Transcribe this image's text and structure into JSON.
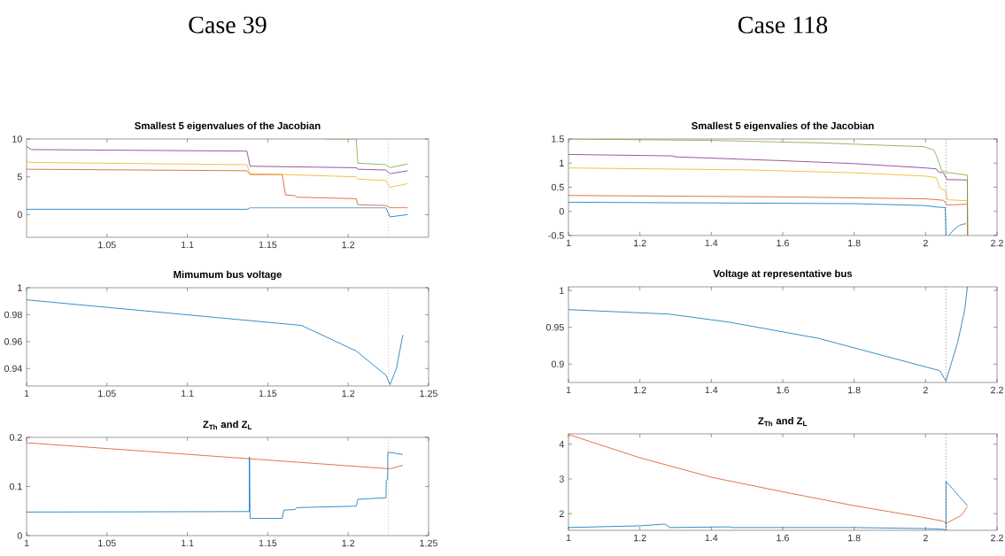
{
  "chart_data": [
    {
      "type": "line",
      "title": "Smallest 5 eigenvalues of the Jacobian",
      "annotations": [
        "Case 39"
      ],
      "xlim": [
        1,
        1.25
      ],
      "ylim": [
        -3,
        10
      ],
      "xticks": [
        1.05,
        1.1,
        1.15,
        1.2
      ],
      "yticks": [
        0,
        5,
        10
      ],
      "series": [
        {
          "color": "#0072bd",
          "x": [
            1.0,
            1.137,
            1.139,
            1.2234,
            1.226,
            1.237
          ],
          "values": [
            0.7,
            0.7,
            0.9,
            0.9,
            -0.3,
            0
          ]
        },
        {
          "color": "#d95319",
          "x": [
            1.0,
            1.137,
            1.139,
            1.159,
            1.161,
            1.167,
            1.168,
            1.205,
            1.206,
            1.2234,
            1.226,
            1.237
          ],
          "values": [
            6.0,
            5.8,
            5.3,
            5.3,
            2.6,
            2.5,
            2.3,
            2.1,
            1.3,
            1.2,
            0.9,
            0.9
          ]
        },
        {
          "color": "#edb120",
          "x": [
            1.0,
            1.003,
            1.137,
            1.139,
            1.159,
            1.205,
            1.206,
            1.2234,
            1.226,
            1.237
          ],
          "values": [
            7.0,
            6.9,
            6.6,
            5.4,
            5.3,
            5.0,
            4.7,
            4.5,
            3.6,
            4.1
          ]
        },
        {
          "color": "#7e2f8e",
          "x": [
            1.0,
            1.003,
            1.137,
            1.139,
            1.205,
            1.206,
            1.2234,
            1.226,
            1.237
          ],
          "values": [
            9.0,
            8.6,
            8.4,
            6.4,
            6.2,
            6.0,
            5.9,
            5.4,
            5.8
          ]
        },
        {
          "color": "#77ac30",
          "x": [
            1.186,
            1.205,
            1.206,
            1.2234,
            1.226,
            1.237
          ],
          "values": [
            10,
            10,
            6.8,
            6.6,
            6.2,
            6.7
          ]
        }
      ],
      "ref_lines": [
        {
          "axis": "x",
          "value": 1.225,
          "color": "#a0a0a0",
          "line_style": "dotted"
        }
      ]
    },
    {
      "type": "line",
      "title": "Smallest 5 eigenvalies of the Jacobian",
      "annotations": [
        "Case 118"
      ],
      "xlim": [
        1,
        2.2
      ],
      "ylim": [
        -0.5,
        1.5
      ],
      "xticks": [
        1,
        1.2,
        1.4,
        1.6,
        1.8,
        2,
        2.2
      ],
      "yticks": [
        -0.5,
        0,
        0.5,
        1,
        1.5
      ],
      "series": [
        {
          "color": "#0072bd",
          "x": [
            1.0,
            1.8,
            2.0,
            2.03,
            2.055,
            2.057,
            2.06,
            2.065,
            2.08,
            2.095,
            2.107,
            2.113
          ],
          "values": [
            0.19,
            0.16,
            0.12,
            0.09,
            0.08,
            -0.5,
            null,
            -0.5,
            -0.37,
            -0.29,
            -0.26,
            -0.26
          ]
        },
        {
          "color": "#d95319",
          "x": [
            1.0,
            1.6,
            2.0,
            2.05,
            2.06,
            2.117,
            2.118
          ],
          "values": [
            0.33,
            0.3,
            0.26,
            0.23,
            0.13,
            0.15,
            -0.5
          ]
        },
        {
          "color": "#edb120",
          "x": [
            1.0,
            1.5,
            1.8,
            2.0,
            2.03,
            2.04,
            2.057,
            2.06,
            2.117,
            2.118
          ],
          "values": [
            0.9,
            0.86,
            0.8,
            0.73,
            0.7,
            0.48,
            0.42,
            0.24,
            0.22,
            -0.5
          ]
        },
        {
          "color": "#7e2f8e",
          "x": [
            1.0,
            1.29,
            1.3,
            1.6,
            1.8,
            2.0,
            2.03,
            2.035,
            2.05,
            2.06,
            2.117,
            2.118
          ],
          "values": [
            1.18,
            1.15,
            1.13,
            1.05,
            0.99,
            0.9,
            0.88,
            0.82,
            0.8,
            0.66,
            0.65,
            -0.5
          ]
        },
        {
          "color": "#77ac30",
          "x": [
            1.0,
            1.4,
            1.7,
            1.996,
            2.023,
            2.03,
            2.045,
            2.057,
            2.117,
            2.118
          ],
          "values": [
            1.5,
            1.47,
            1.42,
            1.34,
            1.27,
            1.16,
            0.85,
            0.81,
            0.75,
            -0.5
          ]
        }
      ],
      "ref_lines": [
        {
          "axis": "x",
          "value": 2.057,
          "color": "#404040",
          "line_style": "dotted"
        }
      ]
    },
    {
      "type": "line",
      "title": "Mimumum bus voltage",
      "xlim": [
        1,
        1.25
      ],
      "ylim": [
        0.927,
        1
      ],
      "xticks": [
        1,
        1.05,
        1.1,
        1.15,
        1.2,
        1.25
      ],
      "yticks": [
        0.94,
        0.96,
        0.98,
        1
      ],
      "series": [
        {
          "color": "#0072bd",
          "x": [
            1.0,
            1.171,
            1.205,
            1.2235,
            1.226,
            1.23,
            1.234
          ],
          "values": [
            0.991,
            0.972,
            0.953,
            0.935,
            0.928,
            0.94,
            0.965
          ]
        }
      ],
      "ref_lines": [
        {
          "axis": "x",
          "value": 1.225,
          "color": "#a0a0a0",
          "line_style": "dotted"
        }
      ]
    },
    {
      "type": "line",
      "title": "Voltage at representative bus",
      "xlim": [
        1,
        2.2
      ],
      "ylim": [
        0.875,
        1.005
      ],
      "xticks": [
        1,
        1.2,
        1.4,
        1.6,
        1.8,
        2,
        2.2
      ],
      "yticks": [
        0.9,
        0.95,
        1
      ],
      "series": [
        {
          "color": "#0072bd",
          "x": [
            1.0,
            1.28,
            1.45,
            1.7,
            2.04,
            2.057,
            2.09,
            2.11,
            2.117
          ],
          "values": [
            0.974,
            0.968,
            0.957,
            0.935,
            0.891,
            0.877,
            0.93,
            0.975,
            1.005
          ]
        }
      ],
      "ref_lines": [
        {
          "axis": "x",
          "value": 2.057,
          "color": "#404040",
          "line_style": "dotted"
        }
      ]
    },
    {
      "type": "line",
      "title": "Z$_{Th}$ and Z$_{L}$",
      "xlim": [
        1,
        1.25
      ],
      "ylim": [
        0,
        0.2
      ],
      "xticks": [
        1,
        1.05,
        1.1,
        1.15,
        1.2,
        1.25
      ],
      "yticks": [
        0,
        0.1,
        0.2
      ],
      "series": [
        {
          "color": "#0072bd",
          "x": [
            1.0,
            1.1385,
            1.1386,
            1.139,
            1.159,
            1.16,
            1.167,
            1.168,
            1.205,
            1.206,
            1.2235,
            1.2237,
            1.2245,
            1.2247,
            1.234
          ],
          "values": [
            0.048,
            0.049,
            0.16,
            0.035,
            0.035,
            0.052,
            0.053,
            0.057,
            0.06,
            0.074,
            0.077,
            0.113,
            0.114,
            0.17,
            0.165
          ]
        },
        {
          "color": "#d95319",
          "x": [
            1.0,
            1.226,
            1.234
          ],
          "values": [
            0.189,
            0.136,
            0.143
          ]
        }
      ],
      "ref_lines": [
        {
          "axis": "x",
          "value": 1.225,
          "color": "#a0a0a0",
          "line_style": "dotted"
        }
      ]
    },
    {
      "type": "line",
      "title": "Z$_{Th}$ and Z$_{L}$",
      "xlim": [
        1,
        2.2
      ],
      "ylim": [
        1.52,
        4.3
      ],
      "xticks": [
        1,
        1.2,
        1.4,
        1.6,
        1.8,
        2,
        2.2
      ],
      "yticks": [
        2,
        3,
        4
      ],
      "series": [
        {
          "color": "#0072bd",
          "x": [
            1.0,
            1.2,
            1.27,
            1.285,
            1.45,
            1.46,
            1.8,
            2.0,
            2.05,
            2.057,
            2.0571,
            2.117
          ],
          "values": [
            1.6,
            1.65,
            1.7,
            1.6,
            1.62,
            1.6,
            1.6,
            1.57,
            1.55,
            1.52,
            2.93,
            2.23
          ]
        },
        {
          "color": "#d95319",
          "x": [
            1.0,
            1.2,
            1.4,
            1.6,
            1.8,
            2.0,
            2.05,
            2.057,
            2.1,
            2.117
          ],
          "values": [
            4.28,
            3.61,
            3.05,
            2.63,
            2.23,
            1.88,
            1.78,
            1.72,
            1.95,
            2.2
          ]
        }
      ],
      "ref_lines": [
        {
          "axis": "x",
          "value": 2.057,
          "color": "#404040",
          "line_style": "dotted"
        }
      ]
    }
  ]
}
